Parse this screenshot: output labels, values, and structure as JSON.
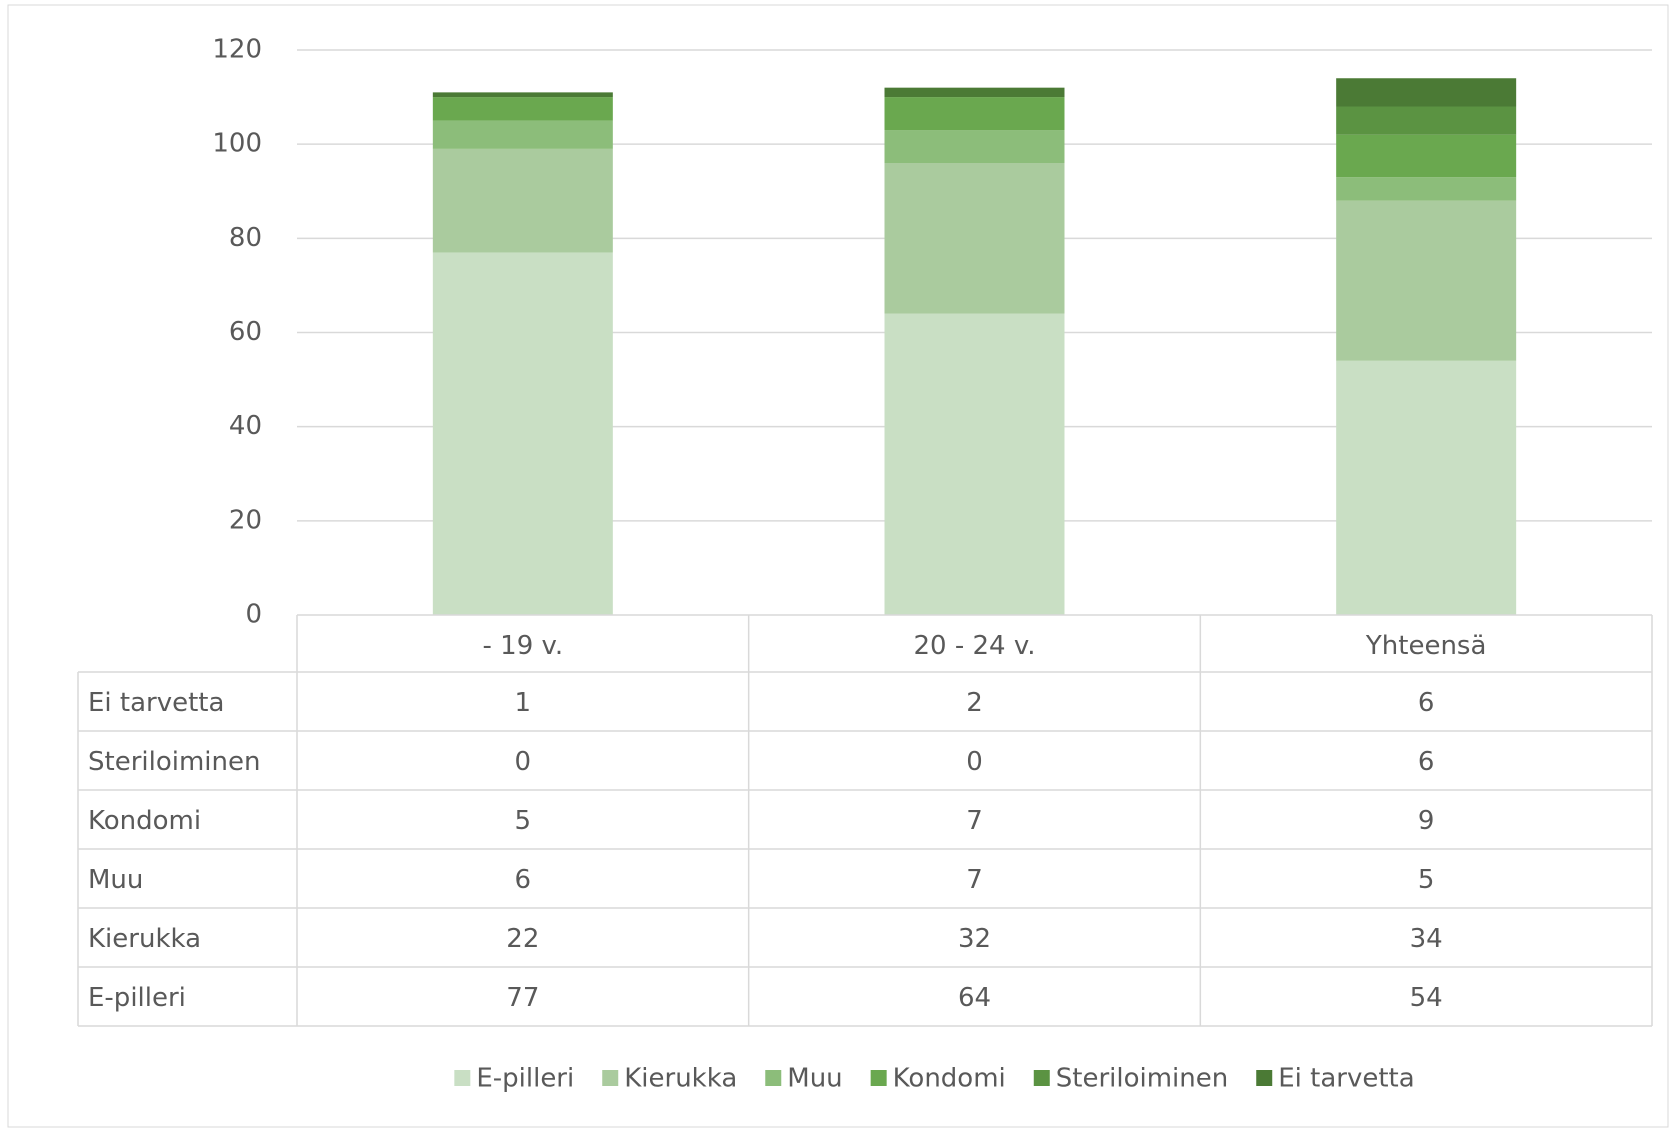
{
  "chart_data": {
    "type": "stacked_bar",
    "categories": [
      "- 19 v.",
      "20 - 24 v.",
      "Yhteensä"
    ],
    "series": [
      {
        "name": "E-pilleri",
        "color": "#c9dfc4",
        "values": [
          77,
          64,
          54
        ]
      },
      {
        "name": "Kierukka",
        "color": "#aacb9e",
        "values": [
          22,
          32,
          34
        ]
      },
      {
        "name": "Muu",
        "color": "#8cbd7a",
        "values": [
          6,
          7,
          5
        ]
      },
      {
        "name": "Kondomi",
        "color": "#6aa84f",
        "values": [
          5,
          7,
          9
        ]
      },
      {
        "name": "Steriloiminen",
        "color": "#5b9342",
        "values": [
          0,
          0,
          6
        ]
      },
      {
        "name": "Ei tarvetta",
        "color": "#4b7a35",
        "values": [
          1,
          2,
          6
        ]
      }
    ],
    "ylim": [
      0,
      120
    ],
    "yticks": [
      0,
      20,
      40,
      60,
      80,
      100,
      120
    ],
    "grid": true,
    "legend": "bottom"
  }
}
